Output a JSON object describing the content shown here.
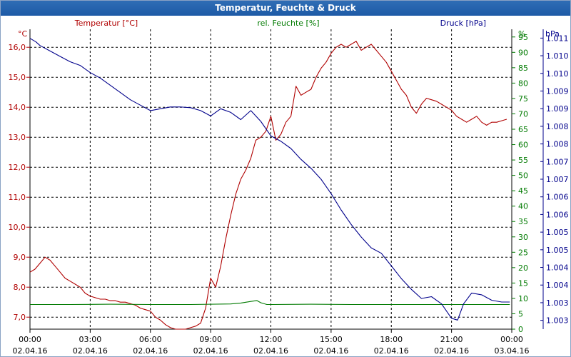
{
  "window": {
    "title": "Temperatur, Feuchte & Druck"
  },
  "colors": {
    "temperature": "#b00000",
    "humidity": "#007a00",
    "pressure": "#00008b",
    "grid": "#000000",
    "title_bg": "#2563ad"
  },
  "chart_data": {
    "type": "line",
    "title": "Temperatur, Feuchte & Druck",
    "x_ticks": [
      {
        "time": "00:00",
        "date": "02.04.16"
      },
      {
        "time": "03:00",
        "date": "02.04.16"
      },
      {
        "time": "06:00",
        "date": "02.04.16"
      },
      {
        "time": "09:00",
        "date": "02.04.16"
      },
      {
        "time": "12:00",
        "date": "02.04.16"
      },
      {
        "time": "15:00",
        "date": "02.04.16"
      },
      {
        "time": "18:00",
        "date": "02.04.16"
      },
      {
        "time": "21:00",
        "date": "02.04.16"
      },
      {
        "time": "00:00",
        "date": "03.04.16"
      }
    ],
    "x_range_hours": [
      0,
      24
    ],
    "axes": {
      "temperature": {
        "unit_label": "°C",
        "legend": "Temperatur [°C]",
        "range": [
          6.6,
          16.6
        ],
        "ticks": [
          "7,0",
          "8,0",
          "9,0",
          "10,0",
          "11,0",
          "12,0",
          "13,0",
          "14,0",
          "15,0",
          "16,0"
        ]
      },
      "humidity": {
        "unit_label": "%",
        "legend": "rel. Feuchte [%]",
        "range": [
          0,
          97.5
        ],
        "ticks": [
          "0",
          "5",
          "10",
          "15",
          "20",
          "25",
          "30",
          "35",
          "40",
          "45",
          "50",
          "55",
          "60",
          "65",
          "70",
          "75",
          "80",
          "85",
          "90",
          "95"
        ]
      },
      "pressure": {
        "unit_label": "hPa",
        "legend": "Druck [hPa]",
        "range": [
          1002.85,
          1011.15
        ],
        "ticks": [
          "1.003",
          "1.003",
          "1.004",
          "1.004",
          "1.005",
          "1.005",
          "1.006",
          "1.006",
          "1.007",
          "1.007",
          "1.008",
          "1.008",
          "1.009",
          "1.009",
          "1.010",
          "1.010",
          "1.011"
        ]
      }
    },
    "series": [
      {
        "name": "Temperatur [°C]",
        "axis": "temperature",
        "x": [
          0,
          0.25,
          0.5,
          0.75,
          1.0,
          1.25,
          1.5,
          1.75,
          2.0,
          2.25,
          2.5,
          2.75,
          3.0,
          3.25,
          3.5,
          3.75,
          4.0,
          4.25,
          4.5,
          4.75,
          5.0,
          5.25,
          5.5,
          5.75,
          6.0,
          6.25,
          6.5,
          6.75,
          7.0,
          7.25,
          7.5,
          7.75,
          8.0,
          8.25,
          8.5,
          8.75,
          9.0,
          9.25,
          9.5,
          9.75,
          10.0,
          10.25,
          10.5,
          10.75,
          11.0,
          11.25,
          11.5,
          11.75,
          12.0,
          12.25,
          12.5,
          12.75,
          13.0,
          13.25,
          13.5,
          13.75,
          14.0,
          14.25,
          14.5,
          14.75,
          15.0,
          15.25,
          15.5,
          15.75,
          16.0,
          16.25,
          16.5,
          16.75,
          17.0,
          17.25,
          17.5,
          17.75,
          18.0,
          18.25,
          18.5,
          18.75,
          19.0,
          19.25,
          19.5,
          19.75,
          20.0,
          20.25,
          20.5,
          20.75,
          21.0,
          21.25,
          21.5,
          21.75,
          22.0,
          22.25,
          22.5,
          22.75,
          23.0,
          23.25,
          23.5,
          23.75
        ],
        "values": [
          8.5,
          8.6,
          8.8,
          9.0,
          8.9,
          8.7,
          8.5,
          8.3,
          8.2,
          8.1,
          8.0,
          7.8,
          7.7,
          7.65,
          7.6,
          7.6,
          7.55,
          7.55,
          7.5,
          7.5,
          7.45,
          7.4,
          7.3,
          7.25,
          7.2,
          7.0,
          6.9,
          6.75,
          6.65,
          6.6,
          6.6,
          6.6,
          6.65,
          6.7,
          6.8,
          7.3,
          8.3,
          8.0,
          8.7,
          9.6,
          10.4,
          11.1,
          11.6,
          11.9,
          12.3,
          12.9,
          13.0,
          13.2,
          13.7,
          12.9,
          13.1,
          13.5,
          13.7,
          14.7,
          14.4,
          14.5,
          14.6,
          15.0,
          15.3,
          15.5,
          15.8,
          16.0,
          16.1,
          16.0,
          16.1,
          16.2,
          15.9,
          16.0,
          16.1,
          15.9,
          15.7,
          15.5,
          15.2,
          14.9,
          14.6,
          14.4,
          14.0,
          13.8,
          14.1,
          14.3,
          14.25,
          14.2,
          14.1,
          14.0,
          13.9,
          13.7,
          13.6,
          13.5,
          13.6,
          13.7,
          13.5,
          13.4,
          13.5,
          13.5,
          13.55,
          13.6
        ]
      },
      {
        "name": "rel. Feuchte [%]",
        "axis": "humidity",
        "x": [
          0,
          2,
          4,
          6,
          8,
          10,
          10.5,
          11.0,
          11.3,
          11.5,
          11.8,
          12,
          14,
          16,
          18,
          20,
          22,
          23.9
        ],
        "values": [
          8.0,
          8.0,
          8.1,
          8.0,
          8.0,
          8.2,
          8.5,
          9.0,
          9.3,
          8.6,
          8.0,
          8.0,
          8.1,
          8.0,
          8.0,
          8.0,
          8.0,
          8.0
        ]
      },
      {
        "name": "Druck [hPa]",
        "axis": "pressure",
        "x": [
          0,
          0.3,
          0.5,
          1.0,
          1.5,
          2.0,
          2.5,
          3.0,
          3.5,
          4.0,
          4.5,
          5.0,
          5.5,
          6.0,
          6.5,
          7.0,
          7.5,
          8.0,
          8.5,
          9.0,
          9.5,
          10.0,
          10.5,
          11.0,
          11.5,
          12.0,
          12.5,
          13.0,
          13.5,
          14.0,
          14.5,
          15.0,
          15.5,
          16.0,
          16.5,
          17.0,
          17.5,
          18.0,
          18.5,
          19.0,
          19.5,
          20.0,
          20.5,
          21.0,
          21.3,
          21.6,
          22.0,
          22.5,
          23.0,
          23.5,
          23.9
        ],
        "values": [
          1010.9,
          1010.8,
          1010.7,
          1010.55,
          1010.4,
          1010.25,
          1010.15,
          1009.95,
          1009.8,
          1009.6,
          1009.4,
          1009.2,
          1009.05,
          1008.9,
          1008.95,
          1009.0,
          1009.0,
          1008.98,
          1008.9,
          1008.75,
          1008.95,
          1008.85,
          1008.65,
          1008.9,
          1008.6,
          1008.2,
          1008.05,
          1007.85,
          1007.55,
          1007.3,
          1007.0,
          1006.6,
          1006.15,
          1005.75,
          1005.4,
          1005.1,
          1004.95,
          1004.6,
          1004.25,
          1003.95,
          1003.7,
          1003.75,
          1003.55,
          1003.15,
          1003.1,
          1003.55,
          1003.85,
          1003.8,
          1003.65,
          1003.6,
          1003.6
        ]
      }
    ]
  }
}
